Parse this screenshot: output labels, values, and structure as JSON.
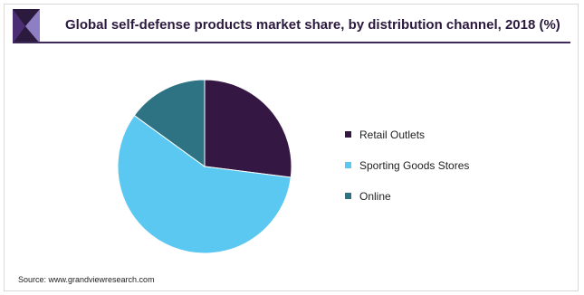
{
  "header": {
    "title": "Global self-defense products market share, by distribution channel, 2018 (%)",
    "logo_colors": [
      "#2b1a3d",
      "#4a2d73",
      "#8e7fc4"
    ]
  },
  "footer": {
    "source": "Source: www.grandviewresearch.com"
  },
  "chart_data": {
    "type": "pie",
    "title": "Global self-defense products market share, by distribution channel, 2018 (%)",
    "start_angle_deg": 0,
    "direction": "clockwise",
    "legend_position": "right",
    "slices": [
      {
        "label": "Retail Outlets",
        "value": 27,
        "color": "#341843"
      },
      {
        "label": "Sporting Goods Stores",
        "value": 58,
        "color": "#5bc8f2"
      },
      {
        "label": "Online",
        "value": 15,
        "color": "#2e7384"
      }
    ]
  }
}
